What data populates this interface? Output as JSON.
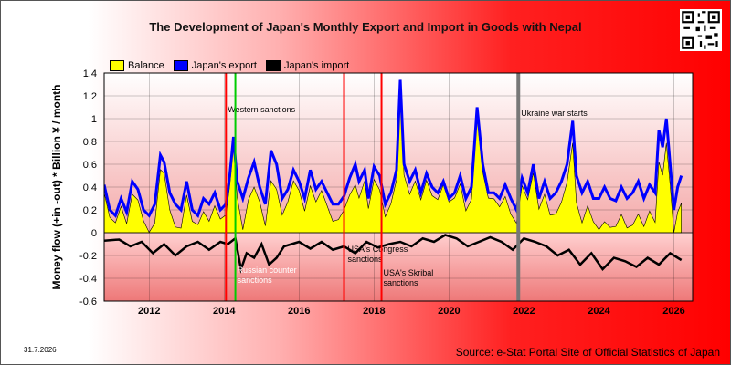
{
  "chart_data": {
    "type": "line",
    "title": "The Development of Japan's Monthly Export and Import in Goods with Nepal",
    "ylabel": "Money flow (+in -out) * Billion ¥ / month",
    "ylim": [
      -0.6,
      1.4
    ],
    "yticks": [
      "1.4",
      "1.2",
      "1",
      "0.8",
      "0.6",
      "0.4",
      "0.2",
      "0",
      "-0.2",
      "-0.4",
      "-0.6"
    ],
    "yticks_values": [
      1.4,
      1.2,
      1.0,
      0.8,
      0.6,
      0.4,
      0.2,
      0,
      -0.2,
      -0.4,
      -0.6
    ],
    "xlim": [
      2010.8,
      2026.5
    ],
    "xticks": [
      "2012",
      "2014",
      "2016",
      "2018",
      "2020",
      "2022",
      "2024",
      "2026"
    ],
    "xticks_values": [
      2012,
      2014,
      2016,
      2018,
      2020,
      2022,
      2024,
      2026
    ],
    "grid": true,
    "legend_position": "top-left",
    "series": [
      {
        "name": "Balance",
        "color": "#ffff00"
      },
      {
        "name": "Japan's export",
        "color": "#0000ff",
        "x": [
          2010.8,
          2010.95,
          2011.1,
          2011.25,
          2011.4,
          2011.55,
          2011.7,
          2011.85,
          2012,
          2012.15,
          2012.3,
          2012.4,
          2012.55,
          2012.7,
          2012.85,
          2013.0,
          2013.15,
          2013.3,
          2013.45,
          2013.6,
          2013.75,
          2013.9,
          2014.05,
          2014.15,
          2014.25,
          2014.35,
          2014.5,
          2014.65,
          2014.8,
          2014.95,
          2015.1,
          2015.25,
          2015.4,
          2015.55,
          2015.7,
          2015.85,
          2016.0,
          2016.15,
          2016.3,
          2016.45,
          2016.6,
          2016.75,
          2016.9,
          2017.05,
          2017.2,
          2017.35,
          2017.5,
          2017.6,
          2017.75,
          2017.85,
          2018.0,
          2018.15,
          2018.3,
          2018.45,
          2018.6,
          2018.7,
          2018.8,
          2018.95,
          2019.1,
          2019.25,
          2019.4,
          2019.55,
          2019.7,
          2019.85,
          2020.0,
          2020.15,
          2020.3,
          2020.45,
          2020.6,
          2020.75,
          2020.9,
          2021.05,
          2021.2,
          2021.35,
          2021.5,
          2021.65,
          2021.8,
          2021.95,
          2022.1,
          2022.25,
          2022.4,
          2022.55,
          2022.7,
          2022.85,
          2023.0,
          2023.15,
          2023.3,
          2023.4,
          2023.55,
          2023.7,
          2023.85,
          2024.0,
          2024.15,
          2024.3,
          2024.45,
          2024.6,
          2024.75,
          2024.9,
          2025.05,
          2025.2,
          2025.35,
          2025.5,
          2025.6,
          2025.7,
          2025.8,
          2025.9,
          2026.0,
          2026.1,
          2026.2
        ],
        "values": [
          0.42,
          0.2,
          0.15,
          0.3,
          0.18,
          0.45,
          0.38,
          0.2,
          0.15,
          0.25,
          0.68,
          0.62,
          0.35,
          0.25,
          0.2,
          0.45,
          0.2,
          0.15,
          0.3,
          0.25,
          0.35,
          0.2,
          0.25,
          0.5,
          0.84,
          0.45,
          0.3,
          0.48,
          0.62,
          0.4,
          0.25,
          0.72,
          0.6,
          0.3,
          0.38,
          0.55,
          0.45,
          0.3,
          0.55,
          0.38,
          0.45,
          0.35,
          0.25,
          0.25,
          0.32,
          0.48,
          0.6,
          0.45,
          0.55,
          0.3,
          0.58,
          0.5,
          0.25,
          0.35,
          0.55,
          1.34,
          0.6,
          0.45,
          0.55,
          0.35,
          0.52,
          0.4,
          0.35,
          0.45,
          0.3,
          0.35,
          0.5,
          0.3,
          0.4,
          1.1,
          0.6,
          0.35,
          0.35,
          0.3,
          0.42,
          0.3,
          0.2,
          0.48,
          0.35,
          0.6,
          0.3,
          0.45,
          0.3,
          0.35,
          0.45,
          0.6,
          0.98,
          0.5,
          0.35,
          0.45,
          0.3,
          0.3,
          0.4,
          0.3,
          0.28,
          0.4,
          0.3,
          0.35,
          0.45,
          0.3,
          0.42,
          0.35,
          0.9,
          0.75,
          1.0,
          0.6,
          0.2,
          0.4,
          0.5
        ]
      },
      {
        "name": "Japan's import",
        "color": "#000000",
        "x": [
          2010.8,
          2011.2,
          2011.5,
          2011.8,
          2012.1,
          2012.4,
          2012.7,
          2013.0,
          2013.3,
          2013.6,
          2013.9,
          2014.1,
          2014.3,
          2014.45,
          2014.6,
          2014.8,
          2015.0,
          2015.2,
          2015.4,
          2015.6,
          2015.8,
          2016.0,
          2016.3,
          2016.6,
          2016.9,
          2017.2,
          2017.5,
          2017.8,
          2018.1,
          2018.4,
          2018.7,
          2019.0,
          2019.3,
          2019.6,
          2019.9,
          2020.2,
          2020.5,
          2020.8,
          2021.1,
          2021.4,
          2021.7,
          2022.0,
          2022.3,
          2022.6,
          2022.9,
          2023.2,
          2023.5,
          2023.8,
          2024.1,
          2024.4,
          2024.7,
          2025.0,
          2025.3,
          2025.6,
          2025.9,
          2026.2
        ],
        "values": [
          -0.07,
          -0.06,
          -0.12,
          -0.08,
          -0.18,
          -0.1,
          -0.2,
          -0.12,
          -0.08,
          -0.15,
          -0.08,
          -0.1,
          -0.05,
          -0.32,
          -0.18,
          -0.22,
          -0.1,
          -0.28,
          -0.22,
          -0.12,
          -0.1,
          -0.08,
          -0.14,
          -0.08,
          -0.15,
          -0.12,
          -0.18,
          -0.08,
          -0.13,
          -0.1,
          -0.08,
          -0.12,
          -0.05,
          -0.08,
          -0.02,
          -0.05,
          -0.12,
          -0.08,
          -0.04,
          -0.08,
          -0.15,
          -0.05,
          -0.08,
          -0.12,
          -0.2,
          -0.15,
          -0.28,
          -0.18,
          -0.32,
          -0.22,
          -0.25,
          -0.3,
          -0.22,
          -0.28,
          -0.18,
          -0.24
        ]
      }
    ],
    "annotations": [
      {
        "label": "Western sanctions",
        "x": 2014.05,
        "color": "#ff0000"
      },
      {
        "label": "Russian counter sanctions",
        "x": 2014.3,
        "color": "#00cc00"
      },
      {
        "label": "USA's Congress sanctions",
        "x": 2017.2,
        "color": "#ff0000"
      },
      {
        "label": "USA's Skribal sanctions",
        "x": 2018.2,
        "color": "#ff0000"
      },
      {
        "label": "Ukraine war starts",
        "x": 2021.85,
        "color": "#777777"
      }
    ]
  },
  "legend": {
    "balance": "Balance",
    "export": "Japan's export",
    "import": "Japan's import"
  },
  "date_stamp": "31.7.2026",
  "source": "Source: e-Stat Portal Site of Official Statistics of Japan"
}
